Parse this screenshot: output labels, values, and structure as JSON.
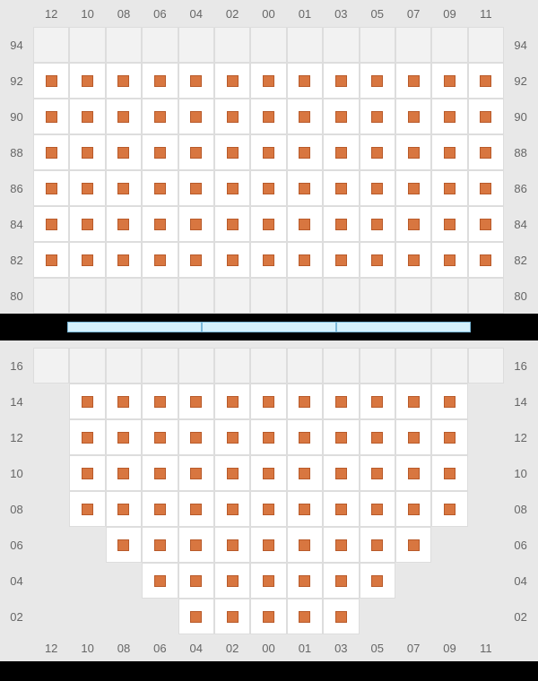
{
  "columns": [
    "12",
    "10",
    "08",
    "06",
    "04",
    "02",
    "00",
    "01",
    "03",
    "05",
    "07",
    "09",
    "11"
  ],
  "top_section": {
    "row_labels": [
      "94",
      "92",
      "90",
      "88",
      "86",
      "84",
      "82",
      "80"
    ],
    "grid": [
      [
        0,
        0,
        0,
        0,
        0,
        0,
        0,
        0,
        0,
        0,
        0,
        0,
        0
      ],
      [
        1,
        1,
        1,
        1,
        1,
        1,
        1,
        1,
        1,
        1,
        1,
        1,
        1
      ],
      [
        1,
        1,
        1,
        1,
        1,
        1,
        1,
        1,
        1,
        1,
        1,
        1,
        1
      ],
      [
        1,
        1,
        1,
        1,
        1,
        1,
        1,
        1,
        1,
        1,
        1,
        1,
        1
      ],
      [
        1,
        1,
        1,
        1,
        1,
        1,
        1,
        1,
        1,
        1,
        1,
        1,
        1
      ],
      [
        1,
        1,
        1,
        1,
        1,
        1,
        1,
        1,
        1,
        1,
        1,
        1,
        1
      ],
      [
        1,
        1,
        1,
        1,
        1,
        1,
        1,
        1,
        1,
        1,
        1,
        1,
        1
      ],
      [
        0,
        0,
        0,
        0,
        0,
        0,
        0,
        0,
        0,
        0,
        0,
        0,
        0
      ]
    ]
  },
  "bottom_section": {
    "row_labels": [
      "16",
      "14",
      "12",
      "10",
      "08",
      "06",
      "04",
      "02"
    ],
    "grid": [
      [
        0,
        0,
        0,
        0,
        0,
        0,
        0,
        0,
        0,
        0,
        0,
        0,
        0
      ],
      [
        0,
        1,
        1,
        1,
        1,
        1,
        1,
        1,
        1,
        1,
        1,
        1,
        0
      ],
      [
        0,
        1,
        1,
        1,
        1,
        1,
        1,
        1,
        1,
        1,
        1,
        1,
        0
      ],
      [
        0,
        1,
        1,
        1,
        1,
        1,
        1,
        1,
        1,
        1,
        1,
        1,
        0
      ],
      [
        0,
        1,
        1,
        1,
        1,
        1,
        1,
        1,
        1,
        1,
        1,
        1,
        0
      ],
      [
        0,
        0,
        1,
        1,
        1,
        1,
        1,
        1,
        1,
        1,
        1,
        0,
        0
      ],
      [
        0,
        0,
        0,
        1,
        1,
        1,
        1,
        1,
        1,
        1,
        0,
        0,
        0
      ],
      [
        0,
        0,
        0,
        0,
        1,
        1,
        1,
        1,
        1,
        0,
        0,
        0,
        0
      ]
    ]
  },
  "divider_segments": 3,
  "colors": {
    "seat_fill": "#d87640",
    "seat_border": "#b85a2a",
    "cell_white": "#ffffff",
    "cell_gray": "#e8e8e8",
    "grid_border": "#dddddd",
    "label_color": "#666666",
    "background": "#000000",
    "divider_fill": "#d4f0fb",
    "divider_border": "#7ab8d8"
  }
}
